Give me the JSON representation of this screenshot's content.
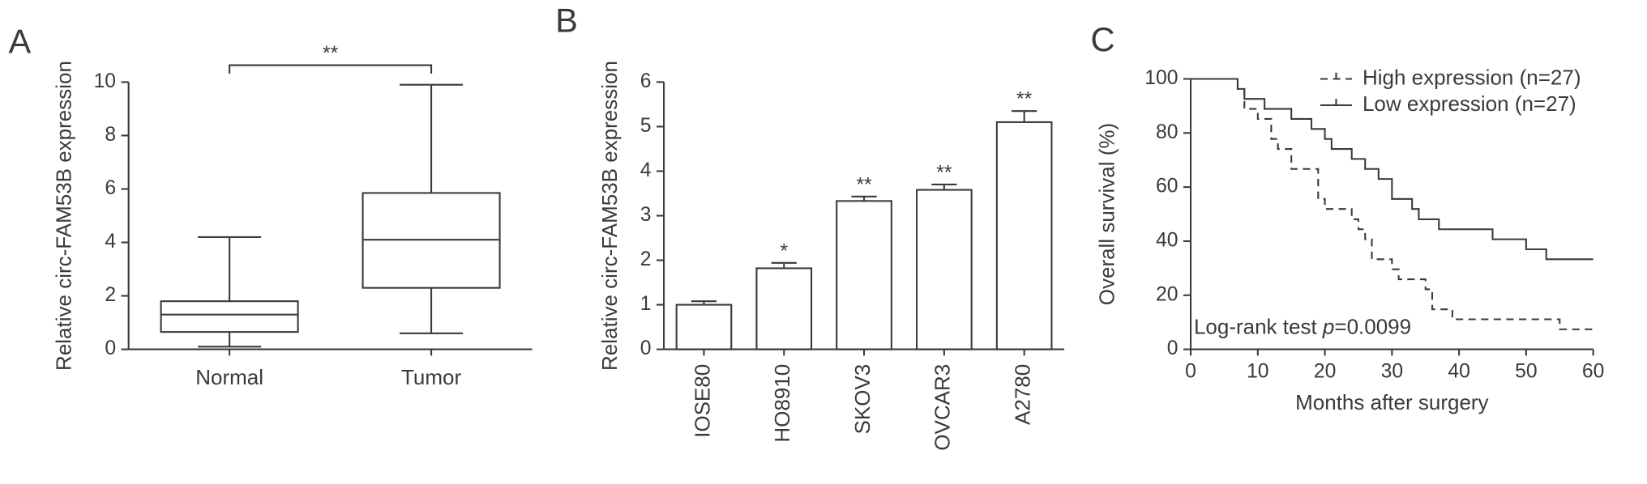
{
  "chart_data": [
    {
      "type": "box",
      "panel_label": "A",
      "ylabel": "Relative circ-FAM53B expression",
      "categories": [
        "Normal",
        "Tumor"
      ],
      "boxes": [
        {
          "min": 0.1,
          "q1": 0.65,
          "median": 1.3,
          "q3": 1.8,
          "max": 4.2
        },
        {
          "min": 0.6,
          "q1": 2.3,
          "median": 4.1,
          "q3": 5.85,
          "max": 9.9
        }
      ],
      "annotation": "**",
      "ylim": [
        0,
        10
      ],
      "yticks": [
        0,
        2,
        4,
        6,
        8,
        10
      ]
    },
    {
      "type": "bar",
      "panel_label": "B",
      "ylabel": "Relative circ-FAM53B expression",
      "categories": [
        "IOSE80",
        "HO8910",
        "SKOV3",
        "OVCAR3",
        "A2780"
      ],
      "values": [
        1.0,
        1.82,
        3.33,
        3.58,
        5.1
      ],
      "errors": [
        0.08,
        0.12,
        0.1,
        0.12,
        0.25
      ],
      "significance": [
        null,
        "*",
        "**",
        "**",
        "**"
      ],
      "colors": [
        "#000000",
        "#a8a8a8",
        "#ffffff",
        "#c8c8c8",
        "#8a8a8a"
      ],
      "ylim": [
        0,
        6
      ],
      "yticks": [
        0,
        1,
        2,
        3,
        4,
        5,
        6
      ]
    },
    {
      "type": "survival",
      "panel_label": "C",
      "xlabel": "Months after surgery",
      "ylabel": "Overall survival (%)",
      "annotation": [
        "Log-rank test ",
        "p",
        "=0.0099"
      ],
      "series": [
        {
          "name": "High expression (n=27)",
          "line_style": "dashed",
          "x": [
            0,
            7,
            8,
            10,
            12,
            13,
            15,
            19,
            20,
            24,
            25,
            26,
            27,
            30,
            31,
            35,
            36,
            39,
            55,
            60
          ],
          "values": [
            100,
            96.3,
            88.9,
            85.2,
            77.8,
            74.1,
            66.7,
            55.6,
            51.9,
            48.1,
            44.4,
            40.7,
            33.3,
            29.6,
            25.9,
            22.2,
            14.8,
            11.1,
            7.4,
            7.4
          ]
        },
        {
          "name": "Low expression (n=27)",
          "line_style": "solid",
          "x": [
            0,
            7,
            8,
            11,
            15,
            18,
            20,
            21,
            24,
            26,
            28,
            30,
            33,
            34,
            37,
            45,
            50,
            53,
            60
          ],
          "values": [
            100,
            96.3,
            92.6,
            88.9,
            85.2,
            81.5,
            77.8,
            74.1,
            70.4,
            66.7,
            63,
            55.6,
            51.9,
            48.1,
            44.4,
            40.7,
            37,
            33.3,
            33.3
          ]
        }
      ],
      "xlim": [
        0,
        60
      ],
      "xticks": [
        0,
        10,
        20,
        30,
        40,
        50,
        60
      ],
      "ylim": [
        0,
        100
      ],
      "yticks": [
        0,
        20,
        40,
        60,
        80,
        100
      ]
    }
  ]
}
